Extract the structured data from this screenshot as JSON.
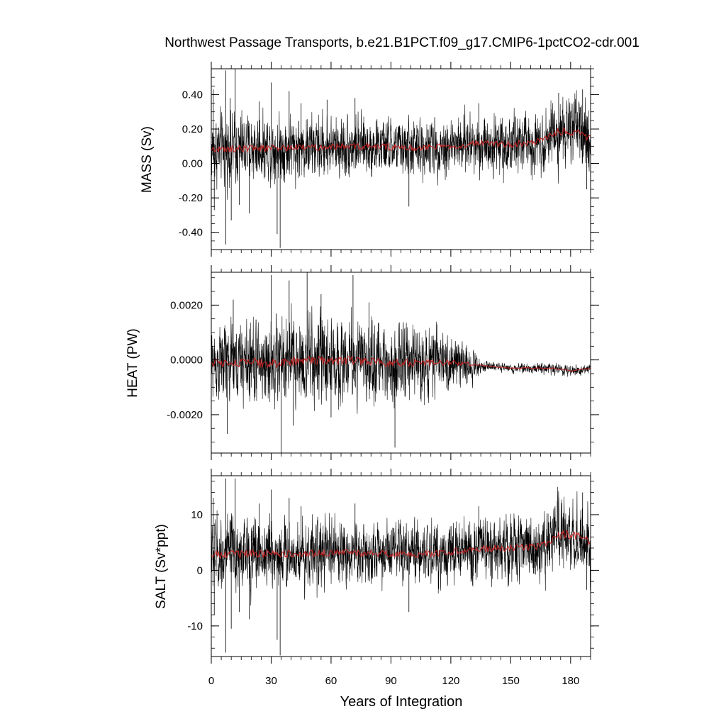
{
  "chart_data": {
    "type": "line",
    "title": "Northwest Passage Transports, b.e21.B1PCT.f09_g17.CMIP6-1pctCO2-cdr.001",
    "xlabel": "Years of Integration",
    "xlim": [
      0,
      190
    ],
    "x_ticks": [
      0,
      30,
      60,
      90,
      120,
      150,
      180
    ],
    "x_tick_labels": [
      "0",
      "30",
      "60",
      "90",
      "120",
      "150",
      "180"
    ],
    "grid": false,
    "legend": "none",
    "series_colors": {
      "monthly": "#000000",
      "annual_mean": "#cc2222"
    },
    "panels": [
      {
        "ylabel": "MASS (Sv)",
        "ylim": [
          -0.5,
          0.55
        ],
        "y_ticks": [
          -0.4,
          -0.2,
          0.0,
          0.2,
          0.4
        ],
        "y_tick_labels": [
          "-0.40",
          "-0.20",
          "0.00",
          "0.20",
          "0.40"
        ],
        "y_minor_step": 0.05,
        "mean_keypoints": {
          "x": [
            0,
            20,
            40,
            60,
            80,
            100,
            120,
            135,
            150,
            165,
            172,
            178,
            185,
            190
          ],
          "y": [
            0.08,
            0.09,
            0.09,
            0.1,
            0.1,
            0.09,
            0.1,
            0.12,
            0.11,
            0.13,
            0.18,
            0.19,
            0.17,
            0.14
          ]
        },
        "noise_keypoints": {
          "x": [
            0,
            30,
            60,
            90,
            120,
            150,
            165,
            175,
            190
          ],
          "y": [
            0.09,
            0.085,
            0.08,
            0.075,
            0.075,
            0.08,
            0.08,
            0.09,
            0.09
          ]
        },
        "spikes": [
          {
            "x": 1,
            "y": 0.43
          },
          {
            "x": 1.5,
            "y": -0.27
          },
          {
            "x": 7.3,
            "y": 0.54
          },
          {
            "x": 7.3,
            "y": -0.47
          },
          {
            "x": 9.5,
            "y": 0.38
          },
          {
            "x": 10,
            "y": -0.33
          },
          {
            "x": 12,
            "y": 0.55
          },
          {
            "x": 14,
            "y": -0.24
          },
          {
            "x": 19,
            "y": -0.29
          },
          {
            "x": 24,
            "y": 0.36
          },
          {
            "x": 30,
            "y": 0.47
          },
          {
            "x": 33,
            "y": -0.41
          },
          {
            "x": 34.5,
            "y": -0.49
          },
          {
            "x": 39,
            "y": 0.42
          },
          {
            "x": 45,
            "y": 0.35
          },
          {
            "x": 58,
            "y": 0.37
          },
          {
            "x": 72,
            "y": 0.38
          },
          {
            "x": 99,
            "y": -0.25
          },
          {
            "x": 134,
            "y": 0.35
          },
          {
            "x": 174,
            "y": 0.41
          },
          {
            "x": 186,
            "y": 0.43
          },
          {
            "x": 188,
            "y": -0.15
          }
        ]
      },
      {
        "ylabel": "HEAT (PW)",
        "ylim": [
          -0.0034,
          0.0032
        ],
        "y_ticks": [
          -0.002,
          0.0,
          0.002
        ],
        "y_tick_labels": [
          "-0.0020",
          "0.0000",
          "0.0020"
        ],
        "y_minor_step": 0.0005,
        "mean_keypoints": {
          "x": [
            0,
            30,
            60,
            90,
            120,
            135,
            150,
            160,
            170,
            180,
            190
          ],
          "y": [
            -0.0001,
            -0.0001,
            0.0,
            -0.0001,
            -0.0001,
            -0.0002,
            -0.0003,
            -0.0003,
            -0.0003,
            -0.0004,
            -0.0003
          ]
        },
        "noise_keypoints": {
          "x": [
            0,
            20,
            40,
            60,
            80,
            100,
            120,
            130,
            135,
            150,
            170,
            190
          ],
          "y": [
            0.0006,
            0.00068,
            0.00075,
            0.0007,
            0.00065,
            0.0006,
            0.00045,
            0.0003,
            9e-05,
            7e-05,
            9e-05,
            8e-05
          ]
        },
        "spikes": [
          {
            "x": 8,
            "y": -0.0027
          },
          {
            "x": 11,
            "y": 0.0022
          },
          {
            "x": 30,
            "y": 0.0031
          },
          {
            "x": 35,
            "y": -0.0034
          },
          {
            "x": 39,
            "y": 0.0029
          },
          {
            "x": 41,
            "y": -0.0024
          },
          {
            "x": 48,
            "y": 0.0032
          },
          {
            "x": 55,
            "y": 0.0024
          },
          {
            "x": 60,
            "y": -0.0021
          },
          {
            "x": 71,
            "y": 0.0031
          },
          {
            "x": 79,
            "y": 0.0021
          },
          {
            "x": 92,
            "y": -0.0032
          },
          {
            "x": 113,
            "y": 0.0013
          }
        ]
      },
      {
        "ylabel": "SALT (Sv*ppt)",
        "xlabel": "Years of Integration",
        "ylim": [
          -15.5,
          17
        ],
        "y_ticks": [
          -10,
          0,
          10
        ],
        "y_tick_labels": [
          "-10",
          "0",
          "10"
        ],
        "y_minor_step": 2,
        "mean_keypoints": {
          "x": [
            0,
            20,
            40,
            60,
            80,
            100,
            120,
            135,
            150,
            165,
            172,
            178,
            185,
            190
          ],
          "y": [
            2.8,
            3.0,
            3.0,
            3.2,
            3.1,
            2.8,
            3.3,
            3.9,
            4.0,
            4.3,
            6.0,
            6.5,
            6.0,
            5.0
          ]
        },
        "noise_keypoints": {
          "x": [
            0,
            30,
            60,
            90,
            120,
            150,
            165,
            175,
            190
          ],
          "y": [
            3.0,
            2.8,
            2.6,
            2.5,
            2.5,
            2.6,
            2.7,
            3.0,
            2.9
          ]
        },
        "spikes": [
          {
            "x": 1,
            "y": 13
          },
          {
            "x": 1.5,
            "y": -8
          },
          {
            "x": 7.3,
            "y": 16.5
          },
          {
            "x": 7.3,
            "y": -14.8
          },
          {
            "x": 10,
            "y": -10.5
          },
          {
            "x": 12,
            "y": 16.5
          },
          {
            "x": 14,
            "y": -7.5
          },
          {
            "x": 19,
            "y": -8.8
          },
          {
            "x": 24,
            "y": 12
          },
          {
            "x": 30,
            "y": 14.5
          },
          {
            "x": 33,
            "y": -12.5
          },
          {
            "x": 34.5,
            "y": -15.3
          },
          {
            "x": 39,
            "y": 13
          },
          {
            "x": 45,
            "y": 11.5
          },
          {
            "x": 72,
            "y": 12
          },
          {
            "x": 99,
            "y": -7.5
          },
          {
            "x": 134,
            "y": 11.5
          },
          {
            "x": 174,
            "y": 13
          },
          {
            "x": 186,
            "y": 14
          },
          {
            "x": 188,
            "y": -3.5
          }
        ]
      }
    ]
  }
}
